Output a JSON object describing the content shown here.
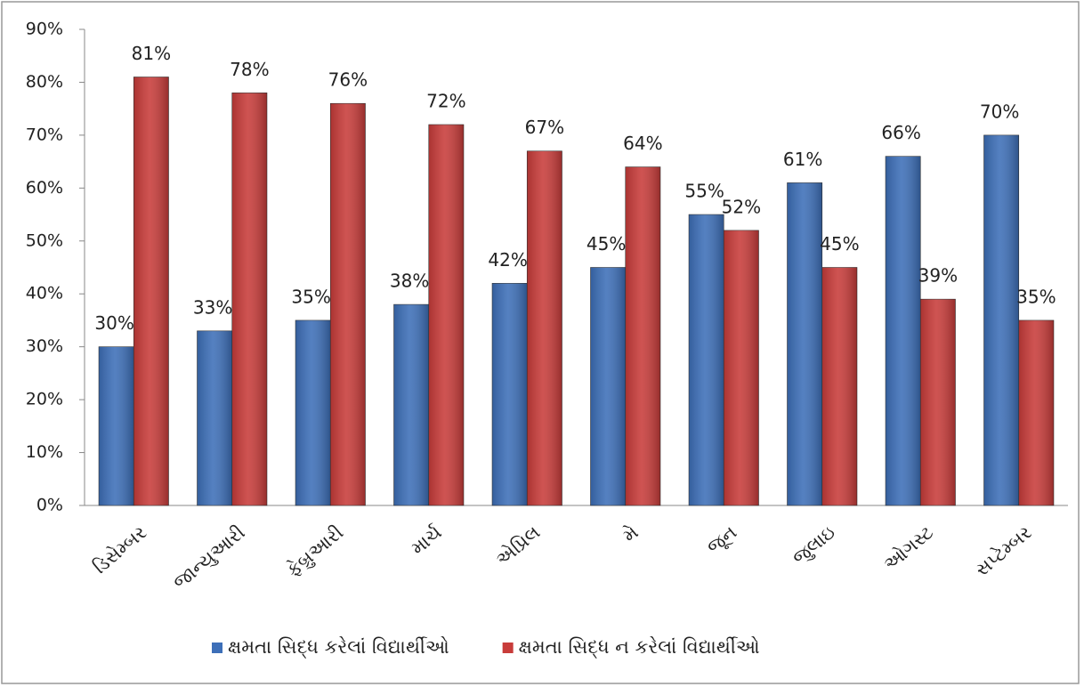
{
  "chart_data": {
    "type": "bar",
    "categories": [
      "ડિસેમ્બર",
      "જાન્યુઆરી",
      "ફેબ્રુઆરી",
      "માર્ચ",
      "એપ્રિલ",
      "મે",
      "જૂન",
      "જુલાઇ",
      "ઓગસ્ટ",
      "સપ્ટેમ્બર"
    ],
    "series": [
      {
        "name": "ક્ષમતા સિદ્ધ કરેલાં વિદ્યાર્થીઓ",
        "color": "#3d6fb8",
        "values": [
          30,
          33,
          35,
          38,
          42,
          45,
          55,
          61,
          66,
          70
        ],
        "value_labels": [
          "30%",
          "33%",
          "35%",
          "38%",
          "42%",
          "45%",
          "55%",
          "61%",
          "66%",
          "70%"
        ]
      },
      {
        "name": "ક્ષમતા સિદ્ધ ન કરેલાં વિદ્યાર્થીઓ",
        "color": "#c83c3a",
        "values": [
          81,
          78,
          76,
          72,
          67,
          64,
          52,
          45,
          39,
          35
        ],
        "value_labels": [
          "81%",
          "78%",
          "76%",
          "72%",
          "67%",
          "64%",
          "52%",
          "45%",
          "39%",
          "35%"
        ]
      }
    ],
    "ylim": [
      0,
      90
    ],
    "yticks": [
      {
        "value": 0,
        "label": "0%"
      },
      {
        "value": 10,
        "label": "10%"
      },
      {
        "value": 20,
        "label": "20%"
      },
      {
        "value": 30,
        "label": "30%"
      },
      {
        "value": 40,
        "label": "40%"
      },
      {
        "value": 50,
        "label": "50%"
      },
      {
        "value": 60,
        "label": "60%"
      },
      {
        "value": 70,
        "label": "70%"
      },
      {
        "value": 80,
        "label": "80%"
      },
      {
        "value": 90,
        "label": "90%"
      }
    ],
    "legend": "bottom"
  }
}
